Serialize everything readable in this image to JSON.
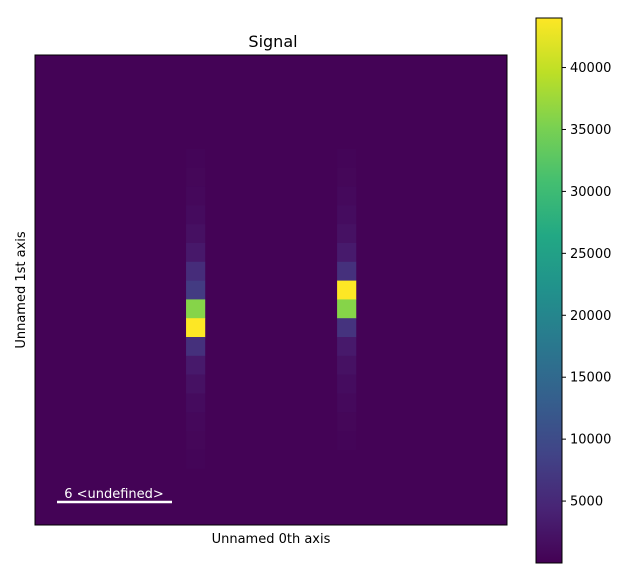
{
  "chart_data": {
    "type": "heatmap",
    "title": "Signal",
    "xlabel": "Unnamed 0th axis",
    "ylabel": "Unnamed 1st axis",
    "grid": false,
    "colormap": "viridis",
    "colorbar": {
      "vmin": 0,
      "vmax": 44000,
      "ticks": [
        5000,
        10000,
        15000,
        20000,
        25000,
        30000,
        35000,
        40000,
        45000
      ],
      "tick_labels": [
        "5000",
        "10000",
        "15000",
        "20000",
        "25000",
        "30000",
        "35000",
        "40000"
      ]
    },
    "scalebar_label": "6 <undefined>",
    "grid_size": [
      25,
      25
    ],
    "background_value": 200,
    "peaks": [
      {
        "column": 8,
        "rows": [
          {
            "row": 5,
            "value": 500
          },
          {
            "row": 6,
            "value": 700
          },
          {
            "row": 7,
            "value": 900
          },
          {
            "row": 8,
            "value": 1300
          },
          {
            "row": 9,
            "value": 1900
          },
          {
            "row": 10,
            "value": 2900
          },
          {
            "row": 11,
            "value": 5500
          },
          {
            "row": 12,
            "value": 7500
          },
          {
            "row": 13,
            "value": 36000
          },
          {
            "row": 14,
            "value": 44000
          },
          {
            "row": 15,
            "value": 6000
          },
          {
            "row": 16,
            "value": 3000
          },
          {
            "row": 17,
            "value": 2000
          },
          {
            "row": 18,
            "value": 1300
          },
          {
            "row": 19,
            "value": 900
          },
          {
            "row": 20,
            "value": 700
          },
          {
            "row": 21,
            "value": 500
          }
        ]
      },
      {
        "column": 16,
        "rows": [
          {
            "row": 5,
            "value": 500
          },
          {
            "row": 6,
            "value": 700
          },
          {
            "row": 7,
            "value": 1000
          },
          {
            "row": 8,
            "value": 1400
          },
          {
            "row": 9,
            "value": 2000
          },
          {
            "row": 10,
            "value": 3200
          },
          {
            "row": 11,
            "value": 6000
          },
          {
            "row": 12,
            "value": 44000
          },
          {
            "row": 13,
            "value": 36000
          },
          {
            "row": 14,
            "value": 6500
          },
          {
            "row": 15,
            "value": 3000
          },
          {
            "row": 16,
            "value": 2000
          },
          {
            "row": 17,
            "value": 1400
          },
          {
            "row": 18,
            "value": 1000
          },
          {
            "row": 19,
            "value": 700
          },
          {
            "row": 20,
            "value": 500
          }
        ]
      }
    ]
  }
}
